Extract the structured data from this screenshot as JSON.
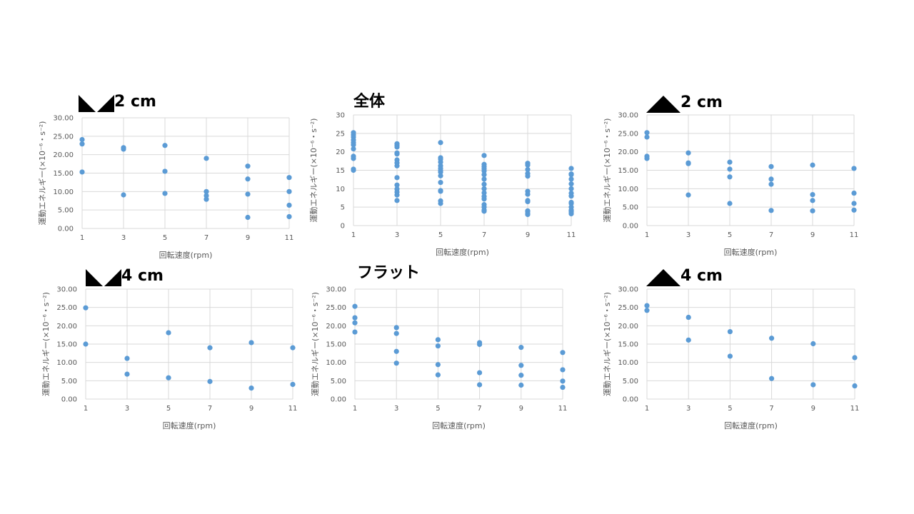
{
  "colors": {
    "marker": "#5b9bd5",
    "grid": "#d9d9d9",
    "text": "#595959"
  },
  "panels": [
    {
      "id": "concave-2",
      "title_icon": "two-down-triangles-icon",
      "title_text": "2 cm"
    },
    {
      "id": "all",
      "title_icon": "",
      "title_text": "全体"
    },
    {
      "id": "convex-2",
      "title_icon": "up-triangle-icon",
      "title_text": "2 cm"
    },
    {
      "id": "concave-4",
      "title_icon": "two-down-triangles-icon",
      "title_text": "4 cm"
    },
    {
      "id": "flat",
      "title_icon": "",
      "title_text": "フラット"
    },
    {
      "id": "convex-4",
      "title_icon": "up-triangle-icon",
      "title_text": "4 cm"
    }
  ],
  "chart_data": [
    {
      "type": "scatter",
      "title": "2 cm",
      "xlabel": "回転速度(rpm)",
      "ylabel": "運動エネルギー(×10⁻⁶・s⁻²)",
      "x_ticks": [
        "1",
        "3",
        "5",
        "7",
        "9",
        "11"
      ],
      "y_ticks": [
        "0.00",
        "5.00",
        "10.00",
        "15.00",
        "20.00",
        "25.00",
        "30.00"
      ],
      "xlim": [
        1,
        11
      ],
      "ylim": [
        0,
        30
      ],
      "grid": true,
      "points": [
        [
          1,
          24.1
        ],
        [
          1,
          22.9
        ],
        [
          1,
          15.3
        ],
        [
          3,
          21.9
        ],
        [
          3,
          21.5
        ],
        [
          3,
          9.1
        ],
        [
          5,
          22.5
        ],
        [
          5,
          15.5
        ],
        [
          5,
          9.5
        ],
        [
          7,
          19.0
        ],
        [
          7,
          10.0
        ],
        [
          7,
          8.9
        ],
        [
          7,
          7.9
        ],
        [
          9,
          16.9
        ],
        [
          9,
          13.4
        ],
        [
          9,
          9.3
        ],
        [
          9,
          3.0
        ],
        [
          11,
          13.8
        ],
        [
          11,
          10.0
        ],
        [
          11,
          6.3
        ],
        [
          11,
          3.2
        ]
      ]
    },
    {
      "type": "scatter",
      "title": "全体",
      "xlabel": "回転速度(rpm)",
      "ylabel": "運動エネルギー(×10⁻⁶・s⁻²)",
      "x_ticks": [
        "1",
        "3",
        "5",
        "7",
        "9",
        "11"
      ],
      "y_ticks": [
        "0",
        "5",
        "10",
        "15",
        "20",
        "25",
        "30"
      ],
      "xlim": [
        1,
        11
      ],
      "ylim": [
        0,
        30
      ],
      "grid": true,
      "points": [
        [
          1,
          25.2
        ],
        [
          1,
          24.6
        ],
        [
          1,
          24.0
        ],
        [
          1,
          23.2
        ],
        [
          1,
          22.5
        ],
        [
          1,
          21.9
        ],
        [
          1,
          20.8
        ],
        [
          1,
          18.8
        ],
        [
          1,
          18.2
        ],
        [
          1,
          15.3
        ],
        [
          1,
          15.0
        ],
        [
          3,
          22.2
        ],
        [
          3,
          21.8
        ],
        [
          3,
          21.3
        ],
        [
          3,
          19.7
        ],
        [
          3,
          19.4
        ],
        [
          3,
          17.8
        ],
        [
          3,
          17.0
        ],
        [
          3,
          16.2
        ],
        [
          3,
          13.0
        ],
        [
          3,
          11.0
        ],
        [
          3,
          9.9
        ],
        [
          3,
          9.1
        ],
        [
          3,
          8.3
        ],
        [
          3,
          6.8
        ],
        [
          5,
          22.5
        ],
        [
          5,
          18.4
        ],
        [
          5,
          18.0
        ],
        [
          5,
          17.2
        ],
        [
          5,
          16.2
        ],
        [
          5,
          15.5
        ],
        [
          5,
          14.9
        ],
        [
          5,
          14.5
        ],
        [
          5,
          13.5
        ],
        [
          5,
          11.7
        ],
        [
          5,
          9.5
        ],
        [
          5,
          9.3
        ],
        [
          5,
          6.7
        ],
        [
          5,
          6.0
        ],
        [
          7,
          19.0
        ],
        [
          7,
          16.6
        ],
        [
          7,
          16.0
        ],
        [
          7,
          15.4
        ],
        [
          7,
          14.8
        ],
        [
          7,
          13.8
        ],
        [
          7,
          12.6
        ],
        [
          7,
          11.2
        ],
        [
          7,
          10.0
        ],
        [
          7,
          8.9
        ],
        [
          7,
          7.9
        ],
        [
          7,
          7.2
        ],
        [
          7,
          5.7
        ],
        [
          7,
          5.0
        ],
        [
          7,
          4.2
        ],
        [
          7,
          3.9
        ],
        [
          9,
          16.9
        ],
        [
          9,
          16.4
        ],
        [
          9,
          15.2
        ],
        [
          9,
          14.1
        ],
        [
          9,
          13.4
        ],
        [
          9,
          9.3
        ],
        [
          9,
          8.5
        ],
        [
          9,
          6.8
        ],
        [
          9,
          6.5
        ],
        [
          9,
          4.0
        ],
        [
          9,
          3.8
        ],
        [
          9,
          3.2
        ],
        [
          9,
          3.0
        ],
        [
          11,
          15.5
        ],
        [
          11,
          14.0
        ],
        [
          11,
          13.8
        ],
        [
          11,
          12.6
        ],
        [
          11,
          11.3
        ],
        [
          11,
          10.0
        ],
        [
          11,
          8.8
        ],
        [
          11,
          8.0
        ],
        [
          11,
          6.3
        ],
        [
          11,
          6.0
        ],
        [
          11,
          5.0
        ],
        [
          11,
          4.2
        ],
        [
          11,
          4.0
        ],
        [
          11,
          3.7
        ],
        [
          11,
          3.2
        ]
      ]
    },
    {
      "type": "scatter",
      "title": "2 cm",
      "xlabel": "回転速度(rpm)",
      "ylabel": "運動エネルギー(×10⁻⁶・s⁻²)",
      "x_ticks": [
        "1",
        "3",
        "5",
        "7",
        "9",
        "11"
      ],
      "y_ticks": [
        "0.00",
        "5.00",
        "10.00",
        "15.00",
        "20.00",
        "25.00",
        "30.00"
      ],
      "xlim": [
        1,
        11
      ],
      "ylim": [
        0,
        30
      ],
      "grid": true,
      "points": [
        [
          1,
          25.2
        ],
        [
          1,
          24.0
        ],
        [
          1,
          18.8
        ],
        [
          1,
          18.2
        ],
        [
          3,
          19.7
        ],
        [
          3,
          17.0
        ],
        [
          3,
          16.8
        ],
        [
          3,
          8.3
        ],
        [
          5,
          17.2
        ],
        [
          5,
          15.3
        ],
        [
          5,
          13.2
        ],
        [
          5,
          6.0
        ],
        [
          7,
          16.0
        ],
        [
          7,
          12.6
        ],
        [
          7,
          11.2
        ],
        [
          7,
          4.1
        ],
        [
          9,
          16.4
        ],
        [
          9,
          8.4
        ],
        [
          9,
          6.8
        ],
        [
          9,
          4.0
        ],
        [
          11,
          15.5
        ],
        [
          11,
          8.8
        ],
        [
          11,
          6.0
        ],
        [
          11,
          4.2
        ]
      ]
    },
    {
      "type": "scatter",
      "title": "4 cm",
      "xlabel": "回転速度(rpm)",
      "ylabel": "運動エネルギー(×10⁻⁶・s⁻²)",
      "x_ticks": [
        "1",
        "3",
        "5",
        "7",
        "9",
        "11"
      ],
      "y_ticks": [
        "0.00",
        "5.00",
        "10.00",
        "15.00",
        "20.00",
        "25.00",
        "30.00"
      ],
      "xlim": [
        1,
        11
      ],
      "ylim": [
        0,
        30
      ],
      "grid": true,
      "points": [
        [
          1,
          24.9
        ],
        [
          1,
          15.0
        ],
        [
          3,
          11.1
        ],
        [
          3,
          6.8
        ],
        [
          5,
          18.1
        ],
        [
          5,
          5.8
        ],
        [
          7,
          14.0
        ],
        [
          7,
          4.8
        ],
        [
          9,
          15.4
        ],
        [
          9,
          3.0
        ],
        [
          11,
          14.0
        ],
        [
          11,
          4.0
        ]
      ]
    },
    {
      "type": "scatter",
      "title": "フラット",
      "xlabel": "回転速度(rpm)",
      "ylabel": "運動エネルギー(×10⁻⁶・s⁻²)",
      "x_ticks": [
        "1",
        "3",
        "5",
        "7",
        "9",
        "11"
      ],
      "y_ticks": [
        "0.00",
        "5.00",
        "10.00",
        "15.00",
        "20.00",
        "25.00",
        "30.00"
      ],
      "xlim": [
        1,
        11
      ],
      "ylim": [
        0,
        30
      ],
      "grid": true,
      "points": [
        [
          1,
          25.3
        ],
        [
          1,
          22.2
        ],
        [
          1,
          20.8
        ],
        [
          1,
          18.3
        ],
        [
          3,
          19.5
        ],
        [
          3,
          17.9
        ],
        [
          3,
          13.0
        ],
        [
          3,
          9.8
        ],
        [
          5,
          16.2
        ],
        [
          5,
          14.5
        ],
        [
          5,
          9.4
        ],
        [
          5,
          6.6
        ],
        [
          7,
          15.4
        ],
        [
          7,
          14.9
        ],
        [
          7,
          7.2
        ],
        [
          7,
          3.9
        ],
        [
          9,
          14.1
        ],
        [
          9,
          9.2
        ],
        [
          9,
          6.5
        ],
        [
          9,
          3.8
        ],
        [
          11,
          12.7
        ],
        [
          11,
          8.0
        ],
        [
          11,
          4.9
        ],
        [
          11,
          3.2
        ]
      ]
    },
    {
      "type": "scatter",
      "title": "4 cm",
      "xlabel": "回転速度(rpm)",
      "ylabel": "運動エネルギー(×10⁻⁶・s⁻²)",
      "x_ticks": [
        "1",
        "3",
        "5",
        "7",
        "9",
        "11"
      ],
      "y_ticks": [
        "0.00",
        "5.00",
        "10.00",
        "15.00",
        "20.00",
        "25.00",
        "30.00"
      ],
      "xlim": [
        1,
        11
      ],
      "ylim": [
        0,
        30
      ],
      "grid": true,
      "points": [
        [
          1,
          25.5
        ],
        [
          1,
          24.2
        ],
        [
          3,
          22.3
        ],
        [
          3,
          16.1
        ],
        [
          5,
          18.4
        ],
        [
          5,
          11.7
        ],
        [
          7,
          16.6
        ],
        [
          7,
          5.6
        ],
        [
          9,
          15.1
        ],
        [
          9,
          3.9
        ],
        [
          11,
          11.3
        ],
        [
          11,
          3.6
        ]
      ]
    }
  ]
}
